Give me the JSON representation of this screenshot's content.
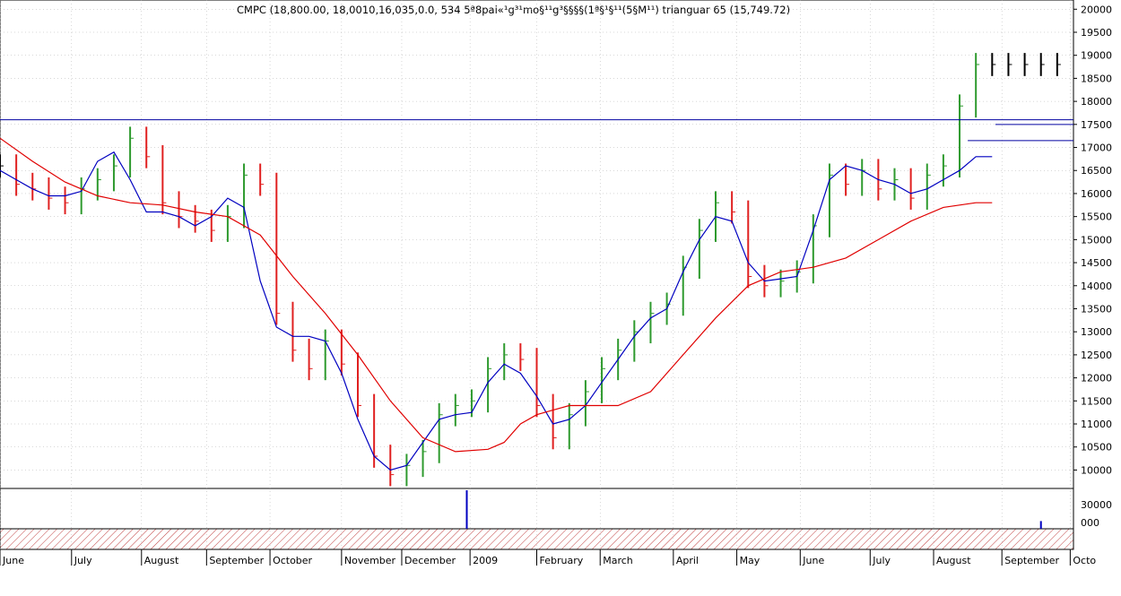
{
  "header": {
    "title": "CMPC (18,800.00, 18,00­10,16,035,0.0, 534 5ª8pai«¹g³¹mo§¹¹g³§§§§(1ª§¹§¹¹(5§M¹¹) trianguar  65 (15,749.72)"
  },
  "colors": {
    "up_bar": "#2e9a2e",
    "down_bar": "#e02020",
    "neutral_bar": "#000000",
    "ma_short": "#0000c0",
    "ma_long": "#e00000",
    "resistance": "#0000a0",
    "volume": "#0000c0",
    "grid": "#b0b0b0",
    "hatch": "#c04040"
  },
  "chart_data": {
    "type": "line",
    "title": "CMPC (18,800.00, 18,00­10,16,035,0.0, 534 5ª8pai«¹g³¹mo§¹¹g³§§§§(1ª§¹§¹¹(5§M¹¹) trianguar  65 (15,749.72)",
    "xlabel": "",
    "ylabel": "",
    "ylim": [
      9600,
      20200
    ],
    "y_ticks": [
      20000,
      19500,
      19000,
      18500,
      18000,
      17500,
      17000,
      16500,
      16000,
      15500,
      15000,
      14500,
      14000,
      13500,
      13000,
      12500,
      12000,
      11500,
      11000,
      10500,
      10000
    ],
    "x_range": [
      0,
      66
    ],
    "months": [
      {
        "label": "June",
        "x": 0
      },
      {
        "label": "July",
        "x": 4.4
      },
      {
        "label": "August",
        "x": 8.7
      },
      {
        "label": "September",
        "x": 12.7
      },
      {
        "label": "October",
        "x": 16.6
      },
      {
        "label": "November",
        "x": 21.0
      },
      {
        "label": "December",
        "x": 24.7
      },
      {
        "label": "2009",
        "x": 28.9
      },
      {
        "label": "February",
        "x": 33.0
      },
      {
        "label": "March",
        "x": 36.9
      },
      {
        "label": "April",
        "x": 41.4
      },
      {
        "label": "May",
        "x": 45.3
      },
      {
        "label": "June",
        "x": 49.2
      },
      {
        "label": "July",
        "x": 53.5
      },
      {
        "label": "August",
        "x": 57.4
      },
      {
        "label": "September",
        "x": 61.6
      },
      {
        "label": "Octo",
        "x": 65.8
      }
    ],
    "price_series": {
      "name": "CMPC",
      "x": [
        0,
        1,
        2,
        3,
        4,
        5,
        6,
        7,
        8,
        9,
        10,
        11,
        12,
        13,
        14,
        15,
        16,
        17,
        18,
        19,
        20,
        21,
        22,
        23,
        24,
        25,
        26,
        27,
        28,
        29,
        30,
        31,
        32,
        33,
        34,
        35,
        36,
        37,
        38,
        39,
        40,
        41,
        42,
        43,
        44,
        45,
        46,
        47,
        48,
        49,
        50,
        51,
        52,
        53,
        54,
        55,
        56,
        57,
        58,
        59,
        60,
        61,
        62,
        63,
        64,
        65
      ],
      "values": [
        16600,
        16200,
        16100,
        15900,
        15800,
        16100,
        16300,
        16600,
        17200,
        16800,
        15800,
        15500,
        15400,
        15200,
        15500,
        16400,
        16200,
        13400,
        12600,
        12200,
        12800,
        12300,
        11400,
        10300,
        9900,
        10100,
        10400,
        11200,
        11400,
        11500,
        12200,
        12500,
        12400,
        11400,
        10700,
        11200,
        11700,
        12200,
        12600,
        13000,
        13400,
        13600,
        14400,
        15200,
        15800,
        15600,
        14200,
        14000,
        14100,
        14300,
        15300,
        16400,
        16200,
        16500,
        16100,
        16300,
        15900,
        16400,
        16600,
        17900,
        18800,
        18800,
        18800,
        18800,
        18800,
        18800
      ]
    },
    "series": [
      {
        "name": "",
        "color": "#0000c0",
        "x": [
          0,
          1,
          2,
          3,
          4,
          5,
          6,
          7,
          8,
          9,
          10,
          11,
          12,
          13,
          14,
          15,
          16,
          17,
          18,
          19,
          20,
          21,
          22,
          23,
          24,
          25,
          26,
          27,
          28,
          29,
          30,
          31,
          32,
          33,
          34,
          35,
          36,
          37,
          38,
          39,
          40,
          41,
          42,
          43,
          44,
          45,
          46,
          47,
          48,
          49,
          50,
          51,
          52,
          53,
          54,
          55,
          56,
          57,
          58,
          59,
          60,
          61
        ],
        "values": [
          16500,
          16300,
          16100,
          15950,
          15950,
          16050,
          16700,
          16900,
          16300,
          15600,
          15600,
          15500,
          15300,
          15500,
          15900,
          15700,
          14100,
          13100,
          12900,
          12900,
          12800,
          12100,
          11100,
          10300,
          10000,
          10100,
          10600,
          11100,
          11200,
          11250,
          11900,
          12300,
          12100,
          11600,
          11000,
          11100,
          11400,
          11900,
          12400,
          12900,
          13300,
          13500,
          14300,
          15000,
          15500,
          15400,
          14500,
          14100,
          14150,
          14200,
          15200,
          16300,
          16600,
          16500,
          16300,
          16200,
          16000,
          16100,
          16300,
          16500,
          16800,
          16800
        ]
      },
      {
        "name": "",
        "color": "#e00000",
        "x": [
          0,
          2,
          4,
          6,
          8,
          10,
          12,
          14,
          16,
          18,
          20,
          22,
          24,
          26,
          28,
          30,
          31,
          32,
          33,
          34,
          35,
          36,
          38,
          40,
          42,
          44,
          46,
          48,
          50,
          52,
          54,
          56,
          58,
          60,
          61
        ],
        "values": [
          17200,
          16700,
          16250,
          15950,
          15800,
          15750,
          15600,
          15500,
          15100,
          14200,
          13400,
          12500,
          11500,
          10700,
          10400,
          10450,
          10600,
          11000,
          11200,
          11300,
          11400,
          11400,
          11400,
          11700,
          12500,
          13300,
          14000,
          14300,
          14400,
          14600,
          15000,
          15400,
          15700,
          15800,
          15800
        ]
      }
    ],
    "resistance_lines": [
      {
        "y": 17600,
        "x_start": 0,
        "x_end": 66
      },
      {
        "y": 17150,
        "x_start": 59.5,
        "x_end": 66
      },
      {
        "y": 17500,
        "x_start": 61.2,
        "x_end": 66
      }
    ],
    "volume": {
      "y_ticks": [
        "30000",
        "000"
      ],
      "spikes": [
        {
          "x": 28.7,
          "value": 1.0
        },
        {
          "x": 64.0,
          "value": 0.2
        }
      ]
    },
    "grid": true,
    "legend": "none"
  }
}
